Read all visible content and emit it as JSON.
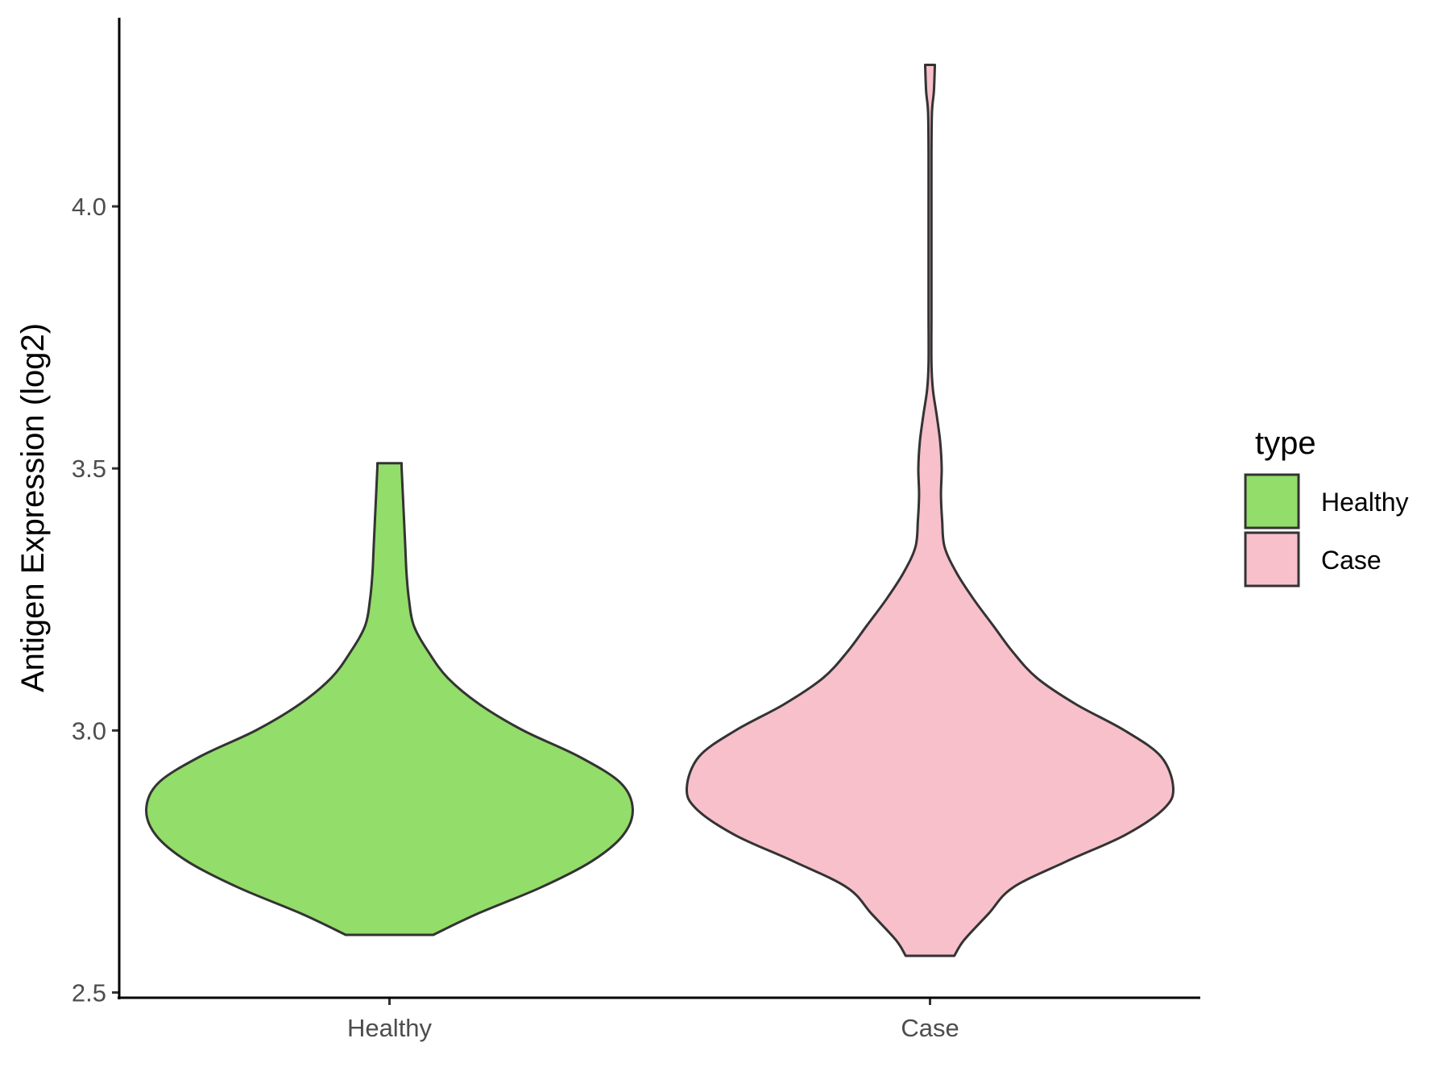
{
  "chart_data": {
    "type": "violin",
    "xlabel": "",
    "ylabel": "Antigen Expression (log2)",
    "ylim": [
      2.49,
      4.36
    ],
    "yticks": [
      "2.5",
      "3.0",
      "3.5",
      "4.0"
    ],
    "categories": [
      "Healthy",
      "Case"
    ],
    "grid": false,
    "legend": {
      "title": "type",
      "placement": "right",
      "entries": [
        {
          "label": "Healthy",
          "color": "#93dd6a"
        },
        {
          "label": "Case",
          "color": "#f7c0cb"
        }
      ]
    },
    "series": [
      {
        "name": "Healthy",
        "color": "#93dd6a",
        "min": 2.61,
        "max": 3.51,
        "density_profile": [
          [
            2.61,
            0.18
          ],
          [
            2.65,
            0.36
          ],
          [
            2.7,
            0.62
          ],
          [
            2.75,
            0.83
          ],
          [
            2.8,
            0.96
          ],
          [
            2.85,
            1.0
          ],
          [
            2.9,
            0.95
          ],
          [
            2.95,
            0.78
          ],
          [
            3.0,
            0.55
          ],
          [
            3.05,
            0.37
          ],
          [
            3.1,
            0.24
          ],
          [
            3.15,
            0.16
          ],
          [
            3.2,
            0.1
          ],
          [
            3.25,
            0.08
          ],
          [
            3.3,
            0.07
          ],
          [
            3.35,
            0.065
          ],
          [
            3.4,
            0.06
          ],
          [
            3.45,
            0.055
          ],
          [
            3.5,
            0.05
          ],
          [
            3.51,
            0.05
          ]
        ]
      },
      {
        "name": "Case",
        "color": "#f7c0cb",
        "min": 2.57,
        "max": 4.27,
        "density_profile": [
          [
            2.57,
            0.1
          ],
          [
            2.6,
            0.14
          ],
          [
            2.65,
            0.24
          ],
          [
            2.7,
            0.34
          ],
          [
            2.75,
            0.56
          ],
          [
            2.8,
            0.8
          ],
          [
            2.85,
            0.96
          ],
          [
            2.89,
            1.0
          ],
          [
            2.95,
            0.95
          ],
          [
            3.0,
            0.8
          ],
          [
            3.05,
            0.6
          ],
          [
            3.1,
            0.44
          ],
          [
            3.15,
            0.34
          ],
          [
            3.2,
            0.26
          ],
          [
            3.25,
            0.18
          ],
          [
            3.3,
            0.11
          ],
          [
            3.35,
            0.06
          ],
          [
            3.4,
            0.05
          ],
          [
            3.45,
            0.045
          ],
          [
            3.5,
            0.048
          ],
          [
            3.55,
            0.042
          ],
          [
            3.6,
            0.028
          ],
          [
            3.65,
            0.012
          ],
          [
            3.7,
            0.006
          ],
          [
            3.8,
            0.006
          ],
          [
            3.9,
            0.006
          ],
          [
            4.0,
            0.006
          ],
          [
            4.1,
            0.006
          ],
          [
            4.18,
            0.008
          ],
          [
            4.22,
            0.016
          ],
          [
            4.27,
            0.02
          ]
        ]
      }
    ]
  }
}
